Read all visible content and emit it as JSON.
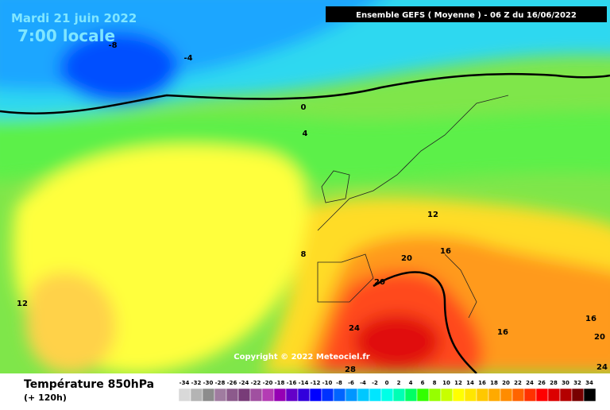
{
  "header": {
    "date": "Mardi 21 juin 2022",
    "time": "7:00 locale",
    "model": "Ensemble GEFS  ( Moyenne )  - 06 Z du 16/06/2022"
  },
  "map": {
    "contour_labels": [
      "-8",
      "-4",
      "0",
      "4",
      "12",
      "8",
      "12",
      "16",
      "20",
      "20",
      "24",
      "28",
      "16",
      "16",
      "20",
      "24"
    ],
    "copyright": "Copyright © 2022 Meteociel.fr"
  },
  "footer": {
    "title": "Température 850hPa",
    "lead": "(+ 120h)"
  },
  "scale": {
    "labels": [
      "-34",
      "-32",
      "-30",
      "-28",
      "-26",
      "-24",
      "-22",
      "-20",
      "-18",
      "-16",
      "-14",
      "-12",
      "-10",
      "-8",
      "-6",
      "-4",
      "-2",
      "0",
      "2",
      "4",
      "6",
      "8",
      "10",
      "12",
      "14",
      "16",
      "18",
      "20",
      "22",
      "24",
      "26",
      "28",
      "30",
      "32",
      "34"
    ],
    "colors": [
      "#d9d9d9",
      "#b4b4b4",
      "#8c8c8c",
      "#a07ca0",
      "#8c5a8c",
      "#783c78",
      "#a050a0",
      "#b43cb4",
      "#9600b4",
      "#6400c8",
      "#3200dc",
      "#0000ff",
      "#0032ff",
      "#0064ff",
      "#0096ff",
      "#00c8ff",
      "#00e6ff",
      "#00ffe6",
      "#00ffb4",
      "#00ff64",
      "#32ff00",
      "#96ff00",
      "#c8ff00",
      "#ffff00",
      "#ffe600",
      "#ffc800",
      "#ffaa00",
      "#ff8c00",
      "#ff6400",
      "#ff3200",
      "#ff0000",
      "#dc0000",
      "#b40000",
      "#780000",
      "#000000"
    ]
  }
}
